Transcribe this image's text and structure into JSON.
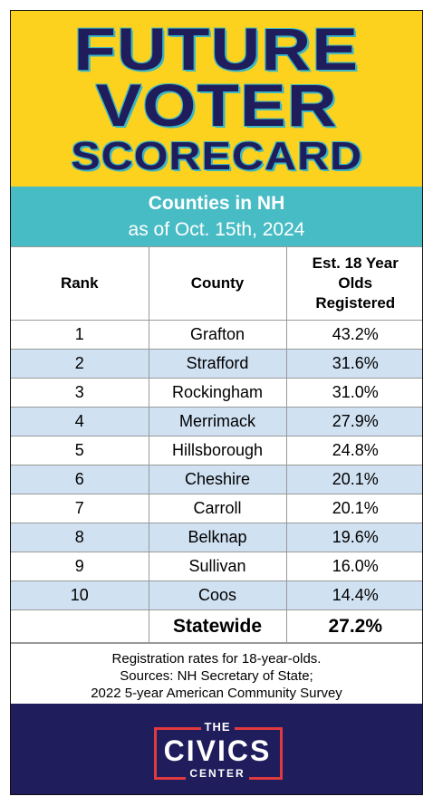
{
  "header": {
    "title_lines": [
      "FUTURE",
      "VOTER",
      "SCORECARD"
    ]
  },
  "subheader": {
    "line1": "Counties in NH",
    "line2": "as of Oct. 15th, 2024"
  },
  "table": {
    "columns": [
      "Rank",
      "County",
      "Est. 18 Year Olds Registered"
    ],
    "rows": [
      [
        "1",
        "Grafton",
        "43.2%"
      ],
      [
        "2",
        "Strafford",
        "31.6%"
      ],
      [
        "3",
        "Rockingham",
        "31.0%"
      ],
      [
        "4",
        "Merrimack",
        "27.9%"
      ],
      [
        "5",
        "Hillsborough",
        "24.8%"
      ],
      [
        "6",
        "Cheshire",
        "20.1%"
      ],
      [
        "7",
        "Carroll",
        "20.1%"
      ],
      [
        "8",
        "Belknap",
        "19.6%"
      ],
      [
        "9",
        "Sullivan",
        "16.0%"
      ],
      [
        "10",
        "Coos",
        "14.4%"
      ]
    ],
    "total": {
      "label": "Statewide",
      "value": "27.2%"
    }
  },
  "notes": [
    "Registration rates for 18-year-olds.",
    "Sources: NH Secretary of State;",
    "2022 5-year American Community Survey"
  ],
  "logo": {
    "top": "THE",
    "main": "CIVICS",
    "bottom": "CENTER"
  }
}
